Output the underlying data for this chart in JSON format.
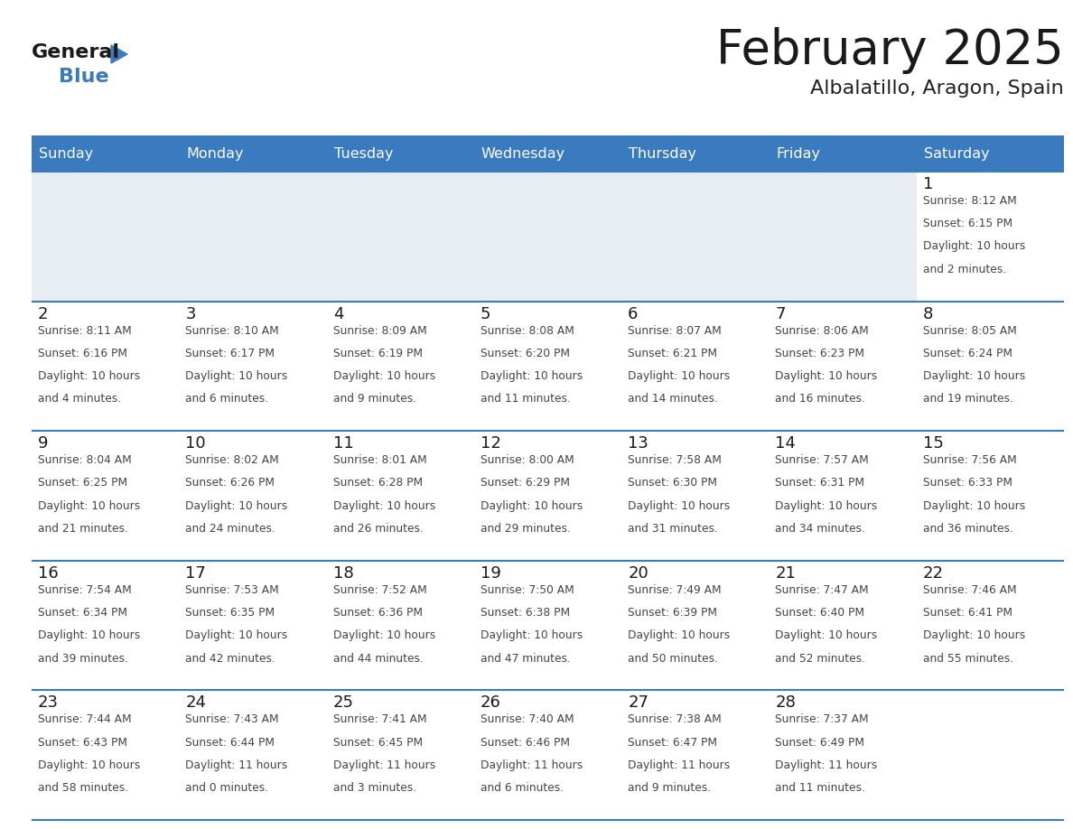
{
  "title": "February 2025",
  "subtitle": "Albalatillo, Aragon, Spain",
  "header_bg_color": "#3a7abf",
  "header_text_color": "#ffffff",
  "empty_cell_bg": "#e8edf2",
  "cell_bg": "#ffffff",
  "title_color": "#1a1a1a",
  "subtitle_color": "#222222",
  "day_number_color": "#1a1a1a",
  "cell_text_color": "#444444",
  "line_color": "#3a7abf",
  "days_of_week": [
    "Sunday",
    "Monday",
    "Tuesday",
    "Wednesday",
    "Thursday",
    "Friday",
    "Saturday"
  ],
  "weeks": [
    [
      null,
      null,
      null,
      null,
      null,
      null,
      1
    ],
    [
      2,
      3,
      4,
      5,
      6,
      7,
      8
    ],
    [
      9,
      10,
      11,
      12,
      13,
      14,
      15
    ],
    [
      16,
      17,
      18,
      19,
      20,
      21,
      22
    ],
    [
      23,
      24,
      25,
      26,
      27,
      28,
      null
    ]
  ],
  "day_data": {
    "1": {
      "sunrise": "8:12 AM",
      "sunset": "6:15 PM",
      "daylight_hours": 10,
      "daylight_minutes": 2
    },
    "2": {
      "sunrise": "8:11 AM",
      "sunset": "6:16 PM",
      "daylight_hours": 10,
      "daylight_minutes": 4
    },
    "3": {
      "sunrise": "8:10 AM",
      "sunset": "6:17 PM",
      "daylight_hours": 10,
      "daylight_minutes": 6
    },
    "4": {
      "sunrise": "8:09 AM",
      "sunset": "6:19 PM",
      "daylight_hours": 10,
      "daylight_minutes": 9
    },
    "5": {
      "sunrise": "8:08 AM",
      "sunset": "6:20 PM",
      "daylight_hours": 10,
      "daylight_minutes": 11
    },
    "6": {
      "sunrise": "8:07 AM",
      "sunset": "6:21 PM",
      "daylight_hours": 10,
      "daylight_minutes": 14
    },
    "7": {
      "sunrise": "8:06 AM",
      "sunset": "6:23 PM",
      "daylight_hours": 10,
      "daylight_minutes": 16
    },
    "8": {
      "sunrise": "8:05 AM",
      "sunset": "6:24 PM",
      "daylight_hours": 10,
      "daylight_minutes": 19
    },
    "9": {
      "sunrise": "8:04 AM",
      "sunset": "6:25 PM",
      "daylight_hours": 10,
      "daylight_minutes": 21
    },
    "10": {
      "sunrise": "8:02 AM",
      "sunset": "6:26 PM",
      "daylight_hours": 10,
      "daylight_minutes": 24
    },
    "11": {
      "sunrise": "8:01 AM",
      "sunset": "6:28 PM",
      "daylight_hours": 10,
      "daylight_minutes": 26
    },
    "12": {
      "sunrise": "8:00 AM",
      "sunset": "6:29 PM",
      "daylight_hours": 10,
      "daylight_minutes": 29
    },
    "13": {
      "sunrise": "7:58 AM",
      "sunset": "6:30 PM",
      "daylight_hours": 10,
      "daylight_minutes": 31
    },
    "14": {
      "sunrise": "7:57 AM",
      "sunset": "6:31 PM",
      "daylight_hours": 10,
      "daylight_minutes": 34
    },
    "15": {
      "sunrise": "7:56 AM",
      "sunset": "6:33 PM",
      "daylight_hours": 10,
      "daylight_minutes": 36
    },
    "16": {
      "sunrise": "7:54 AM",
      "sunset": "6:34 PM",
      "daylight_hours": 10,
      "daylight_minutes": 39
    },
    "17": {
      "sunrise": "7:53 AM",
      "sunset": "6:35 PM",
      "daylight_hours": 10,
      "daylight_minutes": 42
    },
    "18": {
      "sunrise": "7:52 AM",
      "sunset": "6:36 PM",
      "daylight_hours": 10,
      "daylight_minutes": 44
    },
    "19": {
      "sunrise": "7:50 AM",
      "sunset": "6:38 PM",
      "daylight_hours": 10,
      "daylight_minutes": 47
    },
    "20": {
      "sunrise": "7:49 AM",
      "sunset": "6:39 PM",
      "daylight_hours": 10,
      "daylight_minutes": 50
    },
    "21": {
      "sunrise": "7:47 AM",
      "sunset": "6:40 PM",
      "daylight_hours": 10,
      "daylight_minutes": 52
    },
    "22": {
      "sunrise": "7:46 AM",
      "sunset": "6:41 PM",
      "daylight_hours": 10,
      "daylight_minutes": 55
    },
    "23": {
      "sunrise": "7:44 AM",
      "sunset": "6:43 PM",
      "daylight_hours": 10,
      "daylight_minutes": 58
    },
    "24": {
      "sunrise": "7:43 AM",
      "sunset": "6:44 PM",
      "daylight_hours": 11,
      "daylight_minutes": 0
    },
    "25": {
      "sunrise": "7:41 AM",
      "sunset": "6:45 PM",
      "daylight_hours": 11,
      "daylight_minutes": 3
    },
    "26": {
      "sunrise": "7:40 AM",
      "sunset": "6:46 PM",
      "daylight_hours": 11,
      "daylight_minutes": 6
    },
    "27": {
      "sunrise": "7:38 AM",
      "sunset": "6:47 PM",
      "daylight_hours": 11,
      "daylight_minutes": 9
    },
    "28": {
      "sunrise": "7:37 AM",
      "sunset": "6:49 PM",
      "daylight_hours": 11,
      "daylight_minutes": 11
    }
  },
  "figsize": [
    11.88,
    9.18
  ],
  "dpi": 100
}
